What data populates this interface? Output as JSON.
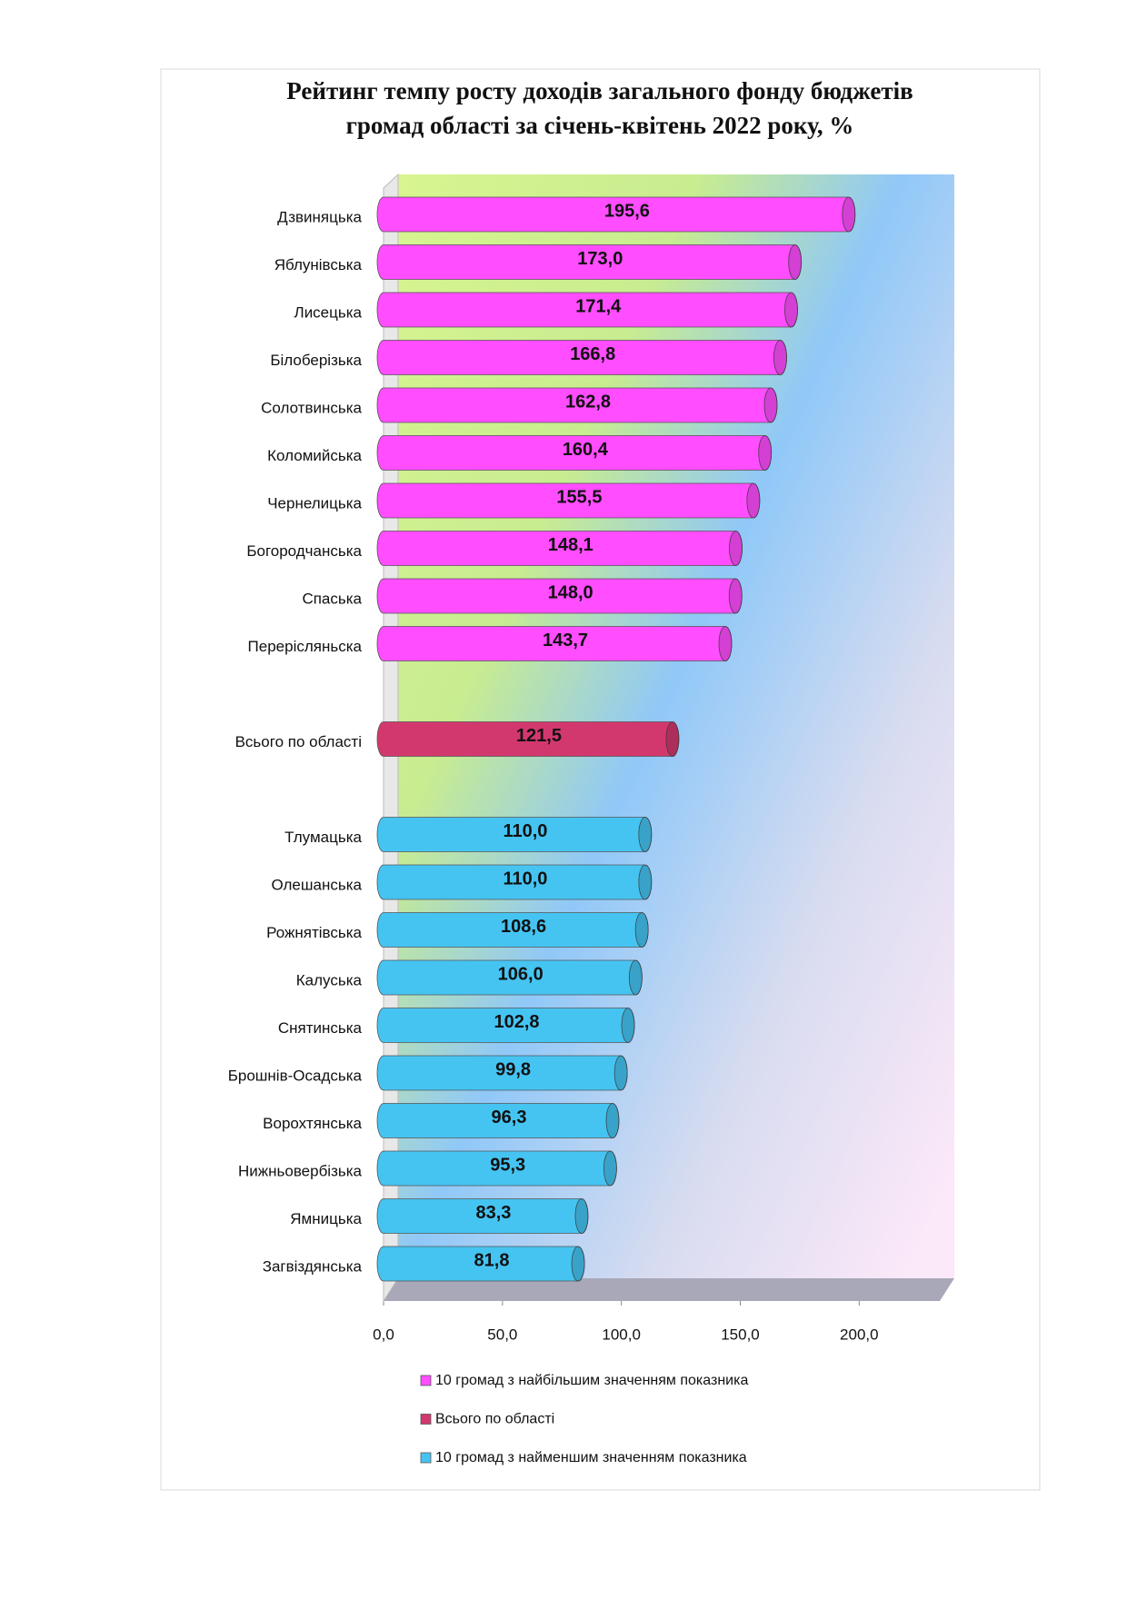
{
  "chart_data": {
    "type": "bar",
    "title": [
      "Рейтинг темпу росту доходів загального фонду бюджетів",
      "громад області  за  січень-квітень 2022 року, %"
    ],
    "categories": [
      "Дзвиняцька",
      "Яблунівська",
      "Лисецька",
      "Білоберізька",
      "Солотвинська",
      "Коломийська",
      "Чернелицька",
      "Богородчанська",
      "Спаська",
      "Перерісляньска",
      "Всього по області",
      "Тлумацька",
      "Олешанська",
      "Рожнятівська",
      "Калуська",
      "Снятинська",
      "Брошнів-Осадська",
      "Ворохтянська",
      "Нижньовербізька",
      "Ямницька",
      "Загвіздянська"
    ],
    "series": [
      {
        "name": "10 громад з найбільшим значенням показника",
        "color": "#ff4dff",
        "values": [
          195.6,
          173.0,
          171.4,
          166.8,
          162.8,
          160.4,
          155.5,
          148.1,
          148.0,
          143.7,
          null,
          null,
          null,
          null,
          null,
          null,
          null,
          null,
          null,
          null,
          null
        ],
        "value_labels": [
          "195,6",
          "173,0",
          "171,4",
          "166,8",
          "162,8",
          "160,4",
          "155,5",
          "148,1",
          "148,0",
          "143,7",
          null,
          null,
          null,
          null,
          null,
          null,
          null,
          null,
          null,
          null,
          null
        ]
      },
      {
        "name": "Всього по області",
        "color": "#d2386e",
        "values": [
          null,
          null,
          null,
          null,
          null,
          null,
          null,
          null,
          null,
          null,
          121.5,
          null,
          null,
          null,
          null,
          null,
          null,
          null,
          null,
          null,
          null
        ],
        "value_labels": [
          null,
          null,
          null,
          null,
          null,
          null,
          null,
          null,
          null,
          null,
          "121,5",
          null,
          null,
          null,
          null,
          null,
          null,
          null,
          null,
          null,
          null
        ]
      },
      {
        "name": "10 громад з найменшим значенням показника",
        "color": "#45c4f2",
        "values": [
          null,
          null,
          null,
          null,
          null,
          null,
          null,
          null,
          null,
          null,
          null,
          110.0,
          110.0,
          108.6,
          106.0,
          102.8,
          99.8,
          96.3,
          95.3,
          83.3,
          81.8
        ],
        "value_labels": [
          null,
          null,
          null,
          null,
          null,
          null,
          null,
          null,
          null,
          null,
          null,
          "110,0",
          "110,0",
          "108,6",
          "106,0",
          "102,8",
          "99,8",
          "96,3",
          "95,3",
          "83,3",
          "81,8"
        ]
      }
    ],
    "xlim": [
      0,
      240
    ],
    "xticks": [
      {
        "value": 0,
        "label": "0,0"
      },
      {
        "value": 50,
        "label": "50,0"
      },
      {
        "value": 100,
        "label": "100,0"
      },
      {
        "value": 150,
        "label": "150,0"
      },
      {
        "value": 200,
        "label": "200,0"
      }
    ]
  }
}
